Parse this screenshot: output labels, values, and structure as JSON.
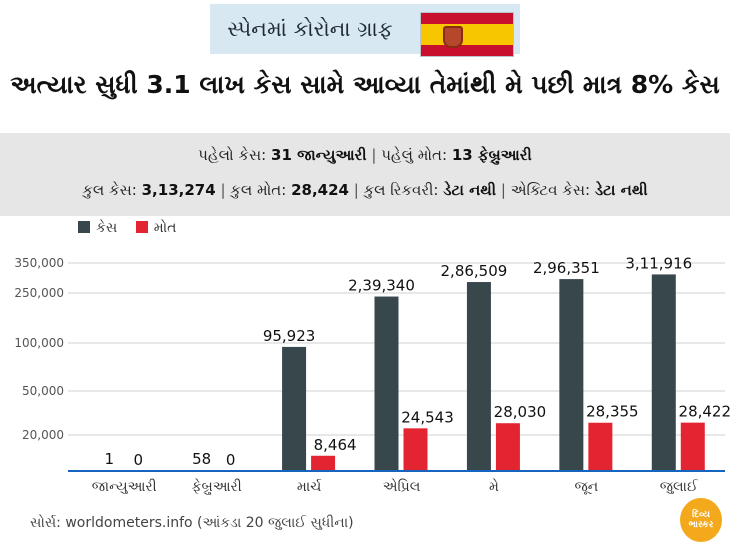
{
  "header": {
    "badge_title": "સ્પેનમાં કોરોના ગ્રાફ",
    "flag_icon": "spain-flag",
    "headline": "અત્યાર સુધી 3.1 લાખ કેસ સામે આવ્યા તેમાંથી મે પછી માત્ર 8% કેસ"
  },
  "info": {
    "first_case_label": "પહેલો કેસ:",
    "first_case_value": "31 જાન્યુઆરી",
    "first_death_label": "પહેલું મોત:",
    "first_death_value": "13 ફેબ્રુઆરી",
    "total_cases_label": "કુલ કેસ:",
    "total_cases_value": "3,13,274",
    "total_deaths_label": "કુલ મોત:",
    "total_deaths_value": "28,424",
    "total_recovered_label": "કુલ રિકવરી:",
    "total_recovered_value": "ડેટા નથી",
    "active_cases_label": "એક્ટિવ કેસ:",
    "active_cases_value": "ડેટા નથી"
  },
  "colors": {
    "cases": "#37474b",
    "deaths": "#e32531",
    "baseline": "#1565c0",
    "grid": "#d2d2d2"
  },
  "chart_data": {
    "type": "bar",
    "categories": [
      "જાન્યુઆરી",
      "ફેબ્રુઆરી",
      "માર્ચ",
      "એપ્રિલ",
      "મે",
      "જૂન",
      "જુલાઈ"
    ],
    "series": [
      {
        "name": "કેસ",
        "values": [
          1,
          58,
          95923,
          239340,
          286509,
          296351,
          311916
        ],
        "labels": [
          "1",
          "58",
          "95,923",
          "2,39,340",
          "2,86,509",
          "2,96,351",
          "3,11,916"
        ]
      },
      {
        "name": "મોત",
        "values": [
          0,
          0,
          8464,
          24543,
          28030,
          28355,
          28422
        ],
        "labels": [
          "0",
          "0",
          "8,464",
          "24,543",
          "28,030",
          "28,355",
          "28,422"
        ]
      }
    ],
    "yticks": [
      20000,
      50000,
      100000,
      250000,
      350000
    ],
    "ytick_labels": [
      "20,000",
      "50,000",
      "100,000",
      "250,000",
      "350,000"
    ],
    "grid": true,
    "legend_position": "top-left"
  },
  "footer": {
    "source": "સોર્સ: worldometers.info (આંકડા 20 જુલાઈ સુધીના)",
    "logo_text_top": "દિવ્ય",
    "logo_text_bottom": "ભાસ્કર"
  }
}
